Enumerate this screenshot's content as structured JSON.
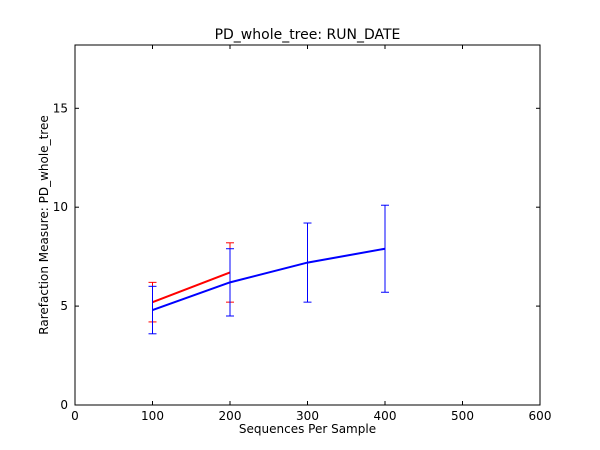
{
  "chart_data": {
    "type": "line",
    "title": "PD_whole_tree: RUN_DATE",
    "xlabel": "Sequences Per Sample",
    "ylabel": "Rarefaction Measure: PD_whole_tree",
    "xlim": [
      0,
      600
    ],
    "ylim": [
      0,
      18.2
    ],
    "xticks": [
      0,
      100,
      200,
      300,
      400,
      500,
      600
    ],
    "yticks": [
      0,
      5,
      10,
      15
    ],
    "grid": false,
    "legend": false,
    "series": [
      {
        "color": "#ff0000",
        "x": [
          100,
          200
        ],
        "y": [
          5.2,
          6.7
        ],
        "err": [
          1.0,
          1.5
        ]
      },
      {
        "color": "#0000ff",
        "x": [
          100,
          200,
          300,
          400
        ],
        "y": [
          4.8,
          6.2,
          7.2,
          7.9
        ],
        "err": [
          1.2,
          1.7,
          2.0,
          2.2
        ]
      }
    ]
  }
}
